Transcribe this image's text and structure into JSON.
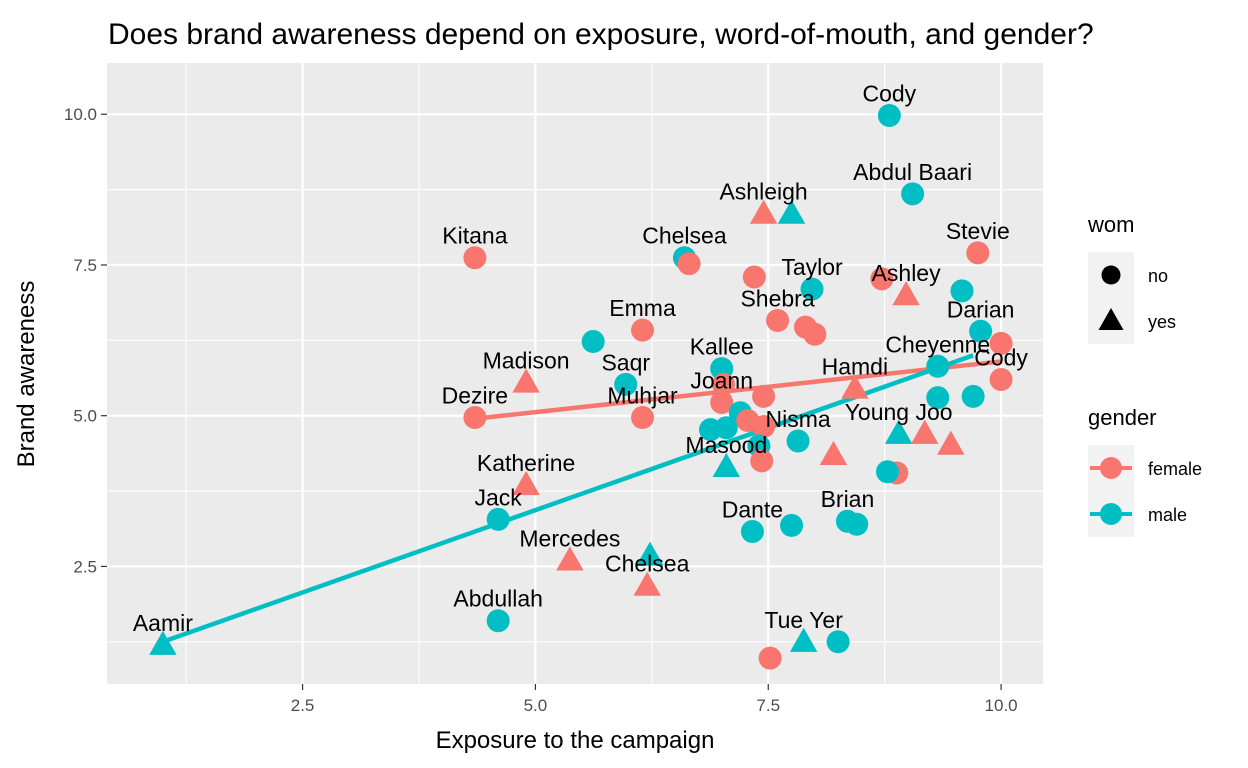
{
  "chart_data": {
    "type": "scatter",
    "title": "Does brand awareness depend on exposure, word-of-mouth, and gender?",
    "xlabel": "Exposure to the campaign",
    "ylabel": "Brand awareness",
    "xlim": [
      0.4,
      10.45
    ],
    "ylim": [
      0.55,
      10.85
    ],
    "xticks": [
      2.5,
      5.0,
      7.5,
      10.0
    ],
    "xtick_labels": [
      "2.5",
      "5.0",
      "7.5",
      "10.0"
    ],
    "yticks": [
      2.5,
      5.0,
      7.5,
      10.0
    ],
    "ytick_labels": [
      "2.5",
      "5.0",
      "7.5",
      "10.0"
    ],
    "grid": true,
    "legend_position": "right",
    "colors": {
      "female": "#F8766D",
      "male": "#00BFC4",
      "panel": "#EBEBEB",
      "grid": "#FFFFFF"
    },
    "legend": {
      "wom": {
        "title": "wom",
        "items": [
          {
            "label": "no",
            "shape": "circle"
          },
          {
            "label": "yes",
            "shape": "triangle"
          }
        ]
      },
      "gender": {
        "title": "gender",
        "items": [
          {
            "label": "female",
            "color": "#F8766D"
          },
          {
            "label": "male",
            "color": "#00BFC4"
          }
        ]
      }
    },
    "trend_lines": [
      {
        "gender": "female",
        "x": [
          4.35,
          10.0
        ],
        "y": [
          4.95,
          5.9
        ]
      },
      {
        "gender": "male",
        "x": [
          1.0,
          9.7
        ],
        "y": [
          1.25,
          6.0
        ]
      }
    ],
    "points": [
      {
        "x": 8.8,
        "y": 9.98,
        "gender": "male",
        "wom": "no",
        "label": "Cody"
      },
      {
        "x": 9.05,
        "y": 8.68,
        "gender": "male",
        "wom": "no",
        "label": "Abdul Baari"
      },
      {
        "x": 7.45,
        "y": 8.35,
        "gender": "female",
        "wom": "yes",
        "label": "Ashleigh"
      },
      {
        "x": 7.75,
        "y": 8.35,
        "gender": "male",
        "wom": "yes"
      },
      {
        "x": 4.35,
        "y": 7.62,
        "gender": "female",
        "wom": "no",
        "label": "Kitana"
      },
      {
        "x": 9.75,
        "y": 7.7,
        "gender": "female",
        "wom": "no",
        "label": "Stevie"
      },
      {
        "x": 6.6,
        "y": 7.62,
        "gender": "male",
        "wom": "no",
        "label": "Chelsea"
      },
      {
        "x": 6.65,
        "y": 7.52,
        "gender": "female",
        "wom": "no"
      },
      {
        "x": 7.35,
        "y": 7.3,
        "gender": "female",
        "wom": "no"
      },
      {
        "x": 7.97,
        "y": 7.1,
        "gender": "male",
        "wom": "no",
        "label": "Taylor"
      },
      {
        "x": 8.72,
        "y": 7.27,
        "gender": "female",
        "wom": "no"
      },
      {
        "x": 8.98,
        "y": 7.0,
        "gender": "female",
        "wom": "yes",
        "label": "Ashley"
      },
      {
        "x": 9.58,
        "y": 7.07,
        "gender": "male",
        "wom": "no"
      },
      {
        "x": 7.6,
        "y": 6.58,
        "gender": "female",
        "wom": "no",
        "label": "Shebra"
      },
      {
        "x": 7.9,
        "y": 6.47,
        "gender": "female",
        "wom": "no"
      },
      {
        "x": 8.0,
        "y": 6.35,
        "gender": "female",
        "wom": "no"
      },
      {
        "x": 9.78,
        "y": 6.4,
        "gender": "male",
        "wom": "no",
        "label": "Darian"
      },
      {
        "x": 10.0,
        "y": 6.2,
        "gender": "female",
        "wom": "no"
      },
      {
        "x": 6.15,
        "y": 6.42,
        "gender": "female",
        "wom": "no",
        "label": "Emma"
      },
      {
        "x": 5.62,
        "y": 6.23,
        "gender": "male",
        "wom": "no"
      },
      {
        "x": 9.32,
        "y": 5.82,
        "gender": "male",
        "wom": "no",
        "label": "Cheyenne"
      },
      {
        "x": 4.9,
        "y": 5.55,
        "gender": "female",
        "wom": "yes",
        "label": "Madison"
      },
      {
        "x": 5.97,
        "y": 5.52,
        "gender": "male",
        "wom": "no",
        "label": "Saqr"
      },
      {
        "x": 7.0,
        "y": 5.78,
        "gender": "male",
        "wom": "no",
        "label": "Kallee"
      },
      {
        "x": 7.02,
        "y": 5.52,
        "gender": "female",
        "wom": "no"
      },
      {
        "x": 7.0,
        "y": 5.22,
        "gender": "female",
        "wom": "no",
        "label": "Joann"
      },
      {
        "x": 7.45,
        "y": 5.32,
        "gender": "female",
        "wom": "no"
      },
      {
        "x": 8.43,
        "y": 5.45,
        "gender": "female",
        "wom": "yes",
        "label": "Hamdi"
      },
      {
        "x": 10.0,
        "y": 5.6,
        "gender": "female",
        "wom": "no",
        "label": "Cody"
      },
      {
        "x": 9.32,
        "y": 5.3,
        "gender": "male",
        "wom": "no"
      },
      {
        "x": 9.7,
        "y": 5.32,
        "gender": "male",
        "wom": "no"
      },
      {
        "x": 4.35,
        "y": 4.97,
        "gender": "female",
        "wom": "no",
        "label": "Dezire"
      },
      {
        "x": 6.15,
        "y": 4.97,
        "gender": "female",
        "wom": "no",
        "label": "Muhjar"
      },
      {
        "x": 7.2,
        "y": 5.05,
        "gender": "male",
        "wom": "no"
      },
      {
        "x": 6.88,
        "y": 4.77,
        "gender": "male",
        "wom": "no"
      },
      {
        "x": 7.05,
        "y": 4.8,
        "gender": "male",
        "wom": "no"
      },
      {
        "x": 7.28,
        "y": 4.92,
        "gender": "female",
        "wom": "no"
      },
      {
        "x": 7.45,
        "y": 4.82,
        "gender": "female",
        "wom": "no"
      },
      {
        "x": 7.4,
        "y": 4.5,
        "gender": "male",
        "wom": "no"
      },
      {
        "x": 7.82,
        "y": 4.58,
        "gender": "male",
        "wom": "no",
        "label": "Nisma"
      },
      {
        "x": 7.43,
        "y": 4.25,
        "gender": "female",
        "wom": "no"
      },
      {
        "x": 7.05,
        "y": 4.15,
        "gender": "male",
        "wom": "yes",
        "label": "Masood"
      },
      {
        "x": 8.2,
        "y": 4.35,
        "gender": "female",
        "wom": "yes"
      },
      {
        "x": 8.9,
        "y": 4.7,
        "gender": "male",
        "wom": "yes",
        "label": "Young Joo"
      },
      {
        "x": 9.18,
        "y": 4.7,
        "gender": "female",
        "wom": "yes"
      },
      {
        "x": 9.46,
        "y": 4.52,
        "gender": "female",
        "wom": "yes"
      },
      {
        "x": 8.88,
        "y": 4.05,
        "gender": "female",
        "wom": "no"
      },
      {
        "x": 8.78,
        "y": 4.07,
        "gender": "male",
        "wom": "no"
      },
      {
        "x": 4.9,
        "y": 3.85,
        "gender": "female",
        "wom": "yes",
        "label": "Katherine"
      },
      {
        "x": 4.6,
        "y": 3.28,
        "gender": "male",
        "wom": "no",
        "label": "Jack"
      },
      {
        "x": 8.35,
        "y": 3.25,
        "gender": "male",
        "wom": "no",
        "label": "Brian"
      },
      {
        "x": 8.45,
        "y": 3.2,
        "gender": "male",
        "wom": "no"
      },
      {
        "x": 7.75,
        "y": 3.18,
        "gender": "male",
        "wom": "no"
      },
      {
        "x": 7.33,
        "y": 3.08,
        "gender": "male",
        "wom": "no",
        "label": "Dante"
      },
      {
        "x": 5.37,
        "y": 2.6,
        "gender": "female",
        "wom": "yes",
        "label": "Mercedes"
      },
      {
        "x": 6.23,
        "y": 2.68,
        "gender": "male",
        "wom": "yes"
      },
      {
        "x": 6.2,
        "y": 2.18,
        "gender": "female",
        "wom": "yes",
        "label": "Chelsea"
      },
      {
        "x": 4.6,
        "y": 1.6,
        "gender": "male",
        "wom": "no",
        "label": "Abdullah"
      },
      {
        "x": 7.88,
        "y": 1.25,
        "gender": "male",
        "wom": "yes",
        "label": "Tue Yer"
      },
      {
        "x": 8.25,
        "y": 1.25,
        "gender": "male",
        "wom": "no"
      },
      {
        "x": 7.52,
        "y": 0.98,
        "gender": "female",
        "wom": "no"
      },
      {
        "x": 1.0,
        "y": 1.2,
        "gender": "male",
        "wom": "yes",
        "label": "Aamir"
      }
    ]
  }
}
